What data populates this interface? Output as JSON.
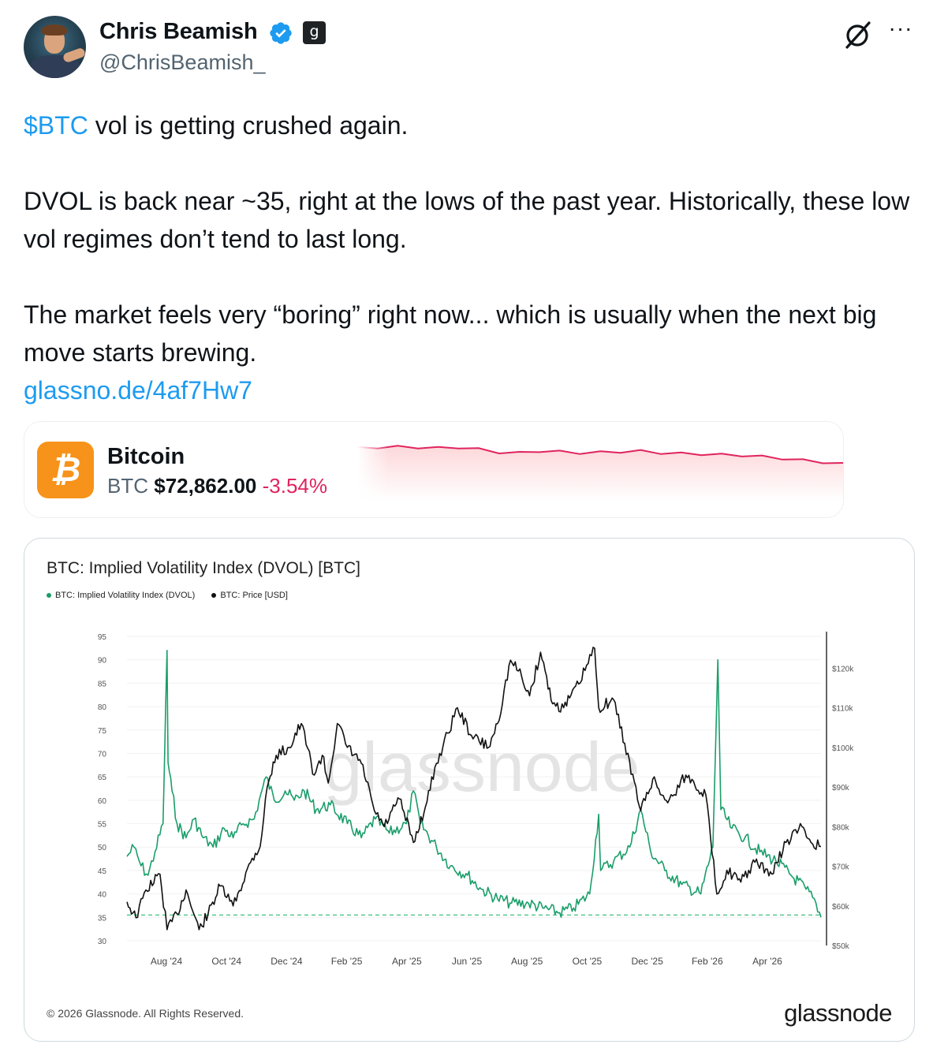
{
  "author": {
    "name": "Chris Beamish",
    "handle": "@ChrisBeamish_",
    "affiliate_badge": "g",
    "verified_color": "#1d9bf0"
  },
  "icons": {
    "verified": "verified-badge-icon",
    "grok": "grok-icon",
    "more": "more-options-icon"
  },
  "tweet": {
    "cashtag": "$BTC",
    "line1": " vol is getting crushed again.",
    "para2": "DVOL is back near ~35, right at the lows of the past year. Historically, these low vol regimes don’t tend to last long.",
    "para3": "The market feels very “boring” right now... which is usually when the next big move starts brewing.",
    "link": "glassno.de/4af7Hw7",
    "link_color": "#1d9bf0"
  },
  "ticker_card": {
    "name": "Bitcoin",
    "symbol": "BTC",
    "price": "$72,862.00",
    "change": "-3.54%",
    "change_color": "#e0245e",
    "logo_color": "#f7931a",
    "spark_trend": [
      0.86,
      0.87,
      0.88,
      0.87,
      0.86,
      0.87,
      0.84,
      0.79,
      0.78,
      0.81,
      0.8,
      0.78,
      0.79,
      0.8,
      0.81,
      0.78,
      0.77,
      0.76,
      0.75,
      0.74,
      0.72,
      0.69,
      0.66,
      0.63,
      0.6
    ]
  },
  "chart": {
    "title": "BTC: Implied Volatility Index (DVOL) [BTC]",
    "legend": [
      {
        "label": "BTC: Implied Volatility Index (DVOL)",
        "color": "#1a9e6a"
      },
      {
        "label": "BTC: Price [USD]",
        "color": "#111111"
      }
    ],
    "watermark": "glassnode",
    "copyright": "© 2026 Glassnode. All Rights Reserved.",
    "brand": "glassnode"
  },
  "chart_data": {
    "type": "line",
    "title": "BTC: Implied Volatility Index (DVOL) [BTC]",
    "x_tick_labels": [
      "Aug '24",
      "Oct '24",
      "Dec '24",
      "Feb '25",
      "Apr '25",
      "Jun '25",
      "Aug '25",
      "Oct '25",
      "Dec '25",
      "Feb '26",
      "Apr '26"
    ],
    "y_left": {
      "range": [
        30,
        95
      ],
      "ticks": [
        95,
        90,
        85,
        80,
        75,
        70,
        65,
        60,
        55,
        50,
        45,
        40,
        35,
        30
      ]
    },
    "y_right": {
      "range": [
        50000,
        130000
      ],
      "ticks": [
        "$120k",
        "$110k",
        "$100k",
        "$90k",
        "$80k",
        "$70k",
        "$60k",
        "$50k"
      ],
      "tick_values": [
        120000,
        110000,
        100000,
        90000,
        80000,
        70000,
        60000,
        50000
      ]
    },
    "x_range": [
      "2024-06-26",
      "2026-05-20"
    ],
    "reference_line": {
      "axis": "left",
      "value": 35.5,
      "style": "dashed",
      "color": "#3fbf7f"
    },
    "grid": true,
    "series": [
      {
        "name": "BTC: Implied Volatility Index (DVOL)",
        "axis": "left",
        "color": "#1a9e6a",
        "points": [
          [
            "2024-06-26",
            48
          ],
          [
            "2024-07-03",
            50
          ],
          [
            "2024-07-10",
            46
          ],
          [
            "2024-07-17",
            44
          ],
          [
            "2024-07-24",
            49
          ],
          [
            "2024-08-01",
            55
          ],
          [
            "2024-08-05",
            92
          ],
          [
            "2024-08-06",
            68
          ],
          [
            "2024-08-10",
            62
          ],
          [
            "2024-08-15",
            55
          ],
          [
            "2024-08-24",
            52
          ],
          [
            "2024-09-01",
            56
          ],
          [
            "2024-09-10",
            52
          ],
          [
            "2024-09-20",
            50
          ],
          [
            "2024-10-01",
            54
          ],
          [
            "2024-10-10",
            52
          ],
          [
            "2024-10-20",
            55
          ],
          [
            "2024-10-31",
            56
          ],
          [
            "2024-11-05",
            60
          ],
          [
            "2024-11-12",
            65
          ],
          [
            "2024-11-20",
            60
          ],
          [
            "2024-12-01",
            62
          ],
          [
            "2024-12-10",
            60
          ],
          [
            "2024-12-20",
            62
          ],
          [
            "2025-01-01",
            58
          ],
          [
            "2025-01-15",
            59
          ],
          [
            "2025-02-01",
            55
          ],
          [
            "2025-02-15",
            52
          ],
          [
            "2025-03-01",
            56
          ],
          [
            "2025-03-15",
            53
          ],
          [
            "2025-04-01",
            55
          ],
          [
            "2025-04-08",
            62
          ],
          [
            "2025-04-15",
            55
          ],
          [
            "2025-05-01",
            50
          ],
          [
            "2025-05-15",
            46
          ],
          [
            "2025-06-01",
            44
          ],
          [
            "2025-06-15",
            41
          ],
          [
            "2025-07-01",
            39
          ],
          [
            "2025-07-15",
            38
          ],
          [
            "2025-08-01",
            38
          ],
          [
            "2025-08-15",
            37
          ],
          [
            "2025-09-01",
            36
          ],
          [
            "2025-09-15",
            37
          ],
          [
            "2025-10-01",
            40
          ],
          [
            "2025-10-10",
            57
          ],
          [
            "2025-10-12",
            45
          ],
          [
            "2025-10-25",
            47
          ],
          [
            "2025-11-10",
            50
          ],
          [
            "2025-11-21",
            58
          ],
          [
            "2025-12-01",
            49
          ],
          [
            "2025-12-15",
            45
          ],
          [
            "2026-01-01",
            42
          ],
          [
            "2026-01-20",
            40
          ],
          [
            "2026-02-01",
            50
          ],
          [
            "2026-02-06",
            90
          ],
          [
            "2026-02-09",
            58
          ],
          [
            "2026-02-20",
            54
          ],
          [
            "2026-03-05",
            52
          ],
          [
            "2026-03-20",
            49
          ],
          [
            "2026-04-05",
            47
          ],
          [
            "2026-04-20",
            44
          ],
          [
            "2026-05-05",
            41
          ],
          [
            "2026-05-15",
            38
          ],
          [
            "2026-05-20",
            35
          ]
        ]
      },
      {
        "name": "BTC: Price [USD]",
        "axis": "right",
        "color": "#111111",
        "points": [
          [
            "2024-06-26",
            61000
          ],
          [
            "2024-07-05",
            57000
          ],
          [
            "2024-07-15",
            64000
          ],
          [
            "2024-07-29",
            68000
          ],
          [
            "2024-08-05",
            54000
          ],
          [
            "2024-08-15",
            58000
          ],
          [
            "2024-08-24",
            64000
          ],
          [
            "2024-09-06",
            54000
          ],
          [
            "2024-09-15",
            58000
          ],
          [
            "2024-09-27",
            65000
          ],
          [
            "2024-10-10",
            60000
          ],
          [
            "2024-10-29",
            72000
          ],
          [
            "2024-11-06",
            75000
          ],
          [
            "2024-11-13",
            90000
          ],
          [
            "2024-11-22",
            98000
          ],
          [
            "2024-12-05",
            100000
          ],
          [
            "2024-12-17",
            106000
          ],
          [
            "2024-12-30",
            93000
          ],
          [
            "2025-01-07",
            98000
          ],
          [
            "2025-01-13",
            91000
          ],
          [
            "2025-01-22",
            106000
          ],
          [
            "2025-02-01",
            100000
          ],
          [
            "2025-02-15",
            96000
          ],
          [
            "2025-02-28",
            84000
          ],
          [
            "2025-03-10",
            80000
          ],
          [
            "2025-03-25",
            87000
          ],
          [
            "2025-04-08",
            76000
          ],
          [
            "2025-04-20",
            85000
          ],
          [
            "2025-05-01",
            96000
          ],
          [
            "2025-05-22",
            110000
          ],
          [
            "2025-06-05",
            103000
          ],
          [
            "2025-06-22",
            100000
          ],
          [
            "2025-07-01",
            106000
          ],
          [
            "2025-07-14",
            122000
          ],
          [
            "2025-07-25",
            118000
          ],
          [
            "2025-08-02",
            113000
          ],
          [
            "2025-08-13",
            124000
          ],
          [
            "2025-08-25",
            111000
          ],
          [
            "2025-09-05",
            110000
          ],
          [
            "2025-09-20",
            116000
          ],
          [
            "2025-10-06",
            125000
          ],
          [
            "2025-10-10",
            110000
          ],
          [
            "2025-10-25",
            112000
          ],
          [
            "2025-11-05",
            101000
          ],
          [
            "2025-11-21",
            84000
          ],
          [
            "2025-12-03",
            92000
          ],
          [
            "2025-12-18",
            86000
          ],
          [
            "2026-01-05",
            93000
          ],
          [
            "2026-01-25",
            88000
          ],
          [
            "2026-02-05",
            63000
          ],
          [
            "2026-02-15",
            69000
          ],
          [
            "2026-03-01",
            66000
          ],
          [
            "2026-03-15",
            71000
          ],
          [
            "2026-04-01",
            68000
          ],
          [
            "2026-04-15",
            76000
          ],
          [
            "2026-05-01",
            80000
          ],
          [
            "2026-05-10",
            76000
          ],
          [
            "2026-05-20",
            75000
          ]
        ]
      }
    ]
  }
}
